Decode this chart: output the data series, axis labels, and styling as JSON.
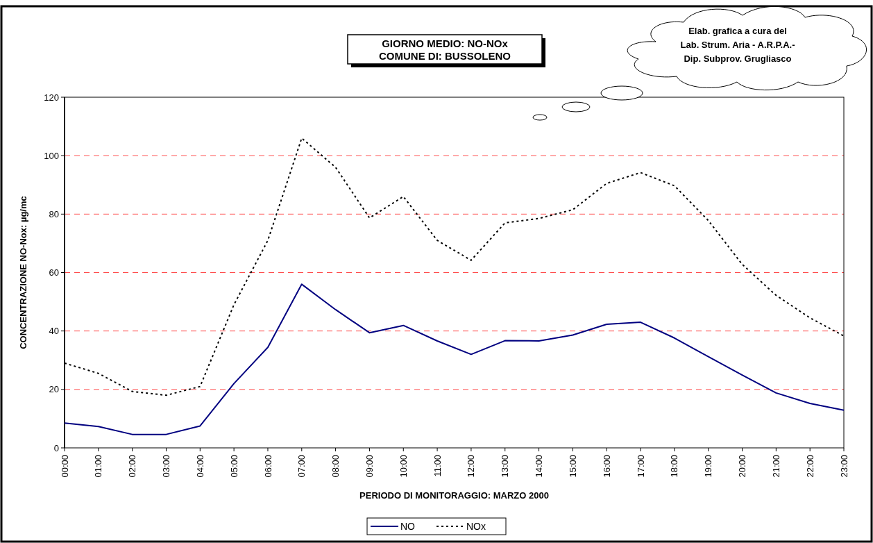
{
  "chart_data": {
    "type": "line",
    "title": "GIORNO MEDIO: NO-NOx\nCOMUNE DI: BUSSOLENO",
    "xlabel": "PERIODO DI MONITORAGGIO: MARZO 2000",
    "ylabel": "CONCENTRAZIONE NO-Nox: µg/mc",
    "annotations": [
      "Elab. grafica a cura del\nLab. Strum. Aria - A.R.P.A.-\nDip. Subprov. Grugliasco"
    ],
    "categories": [
      "00:00",
      "01:00",
      "02:00",
      "03:00",
      "04:00",
      "05:00",
      "06:00",
      "07:00",
      "08:00",
      "09:00",
      "10:00",
      "11:00",
      "12:00",
      "13:00",
      "14:00",
      "15:00",
      "16:00",
      "17:00",
      "18:00",
      "19:00",
      "20:00",
      "21:00",
      "22:00",
      "23:00"
    ],
    "series": [
      {
        "name": "NO",
        "color": "#000080",
        "line_style": "solid",
        "values": [
          8.5,
          7.3,
          4.6,
          4.6,
          7.5,
          22,
          34.4,
          56,
          47.3,
          39.4,
          41.9,
          36.6,
          32,
          36.7,
          36.6,
          38.6,
          42.3,
          43,
          37.6,
          31.2,
          24.9,
          18.8,
          15.2,
          12.9
        ]
      },
      {
        "name": "NOx",
        "color": "#000000",
        "line_style": "dotted",
        "values": [
          29,
          25.5,
          19.3,
          18,
          21,
          49,
          71,
          106,
          96,
          78.7,
          86,
          71,
          64.2,
          77,
          78.5,
          81.5,
          90.5,
          94.2,
          89.7,
          77.8,
          62.8,
          52.2,
          44.5,
          38.3
        ]
      }
    ],
    "ylim": [
      0,
      120
    ],
    "yticks": [
      0,
      20,
      40,
      60,
      80,
      100,
      120
    ],
    "grid": "y",
    "legend": "bottom",
    "marker": "none"
  }
}
